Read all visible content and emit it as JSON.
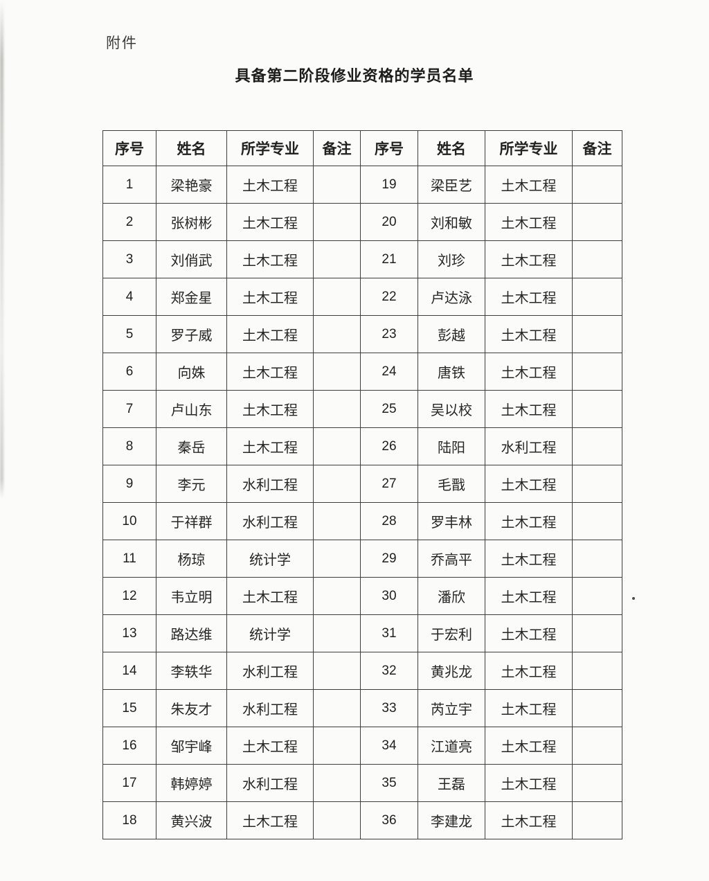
{
  "page": {
    "attachment_label": "附件",
    "title": "具备第二阶段修业资格的学员名单"
  },
  "table": {
    "headers": [
      "序号",
      "姓名",
      "所学专业",
      "备注",
      "序号",
      "姓名",
      "所学专业",
      "备注"
    ],
    "rows": [
      [
        "1",
        "梁艳豪",
        "土木工程",
        "",
        "19",
        "梁臣艺",
        "土木工程",
        ""
      ],
      [
        "2",
        "张树彬",
        "土木工程",
        "",
        "20",
        "刘和敏",
        "土木工程",
        ""
      ],
      [
        "3",
        "刘俏武",
        "土木工程",
        "",
        "21",
        "刘珍",
        "土木工程",
        ""
      ],
      [
        "4",
        "郑金星",
        "土木工程",
        "",
        "22",
        "卢达泳",
        "土木工程",
        ""
      ],
      [
        "5",
        "罗子威",
        "土木工程",
        "",
        "23",
        "彭越",
        "土木工程",
        ""
      ],
      [
        "6",
        "向姝",
        "土木工程",
        "",
        "24",
        "唐铁",
        "土木工程",
        ""
      ],
      [
        "7",
        "卢山东",
        "土木工程",
        "",
        "25",
        "吴以校",
        "土木工程",
        ""
      ],
      [
        "8",
        "秦岳",
        "土木工程",
        "",
        "26",
        "陆阳",
        "水利工程",
        ""
      ],
      [
        "9",
        "李元",
        "水利工程",
        "",
        "27",
        "毛戬",
        "土木工程",
        ""
      ],
      [
        "10",
        "于祥群",
        "水利工程",
        "",
        "28",
        "罗丰林",
        "土木工程",
        ""
      ],
      [
        "11",
        "杨琼",
        "统计学",
        "",
        "29",
        "乔高平",
        "土木工程",
        ""
      ],
      [
        "12",
        "韦立明",
        "土木工程",
        "",
        "30",
        "潘欣",
        "土木工程",
        ""
      ],
      [
        "13",
        "路达维",
        "统计学",
        "",
        "31",
        "于宏利",
        "土木工程",
        ""
      ],
      [
        "14",
        "李轶华",
        "水利工程",
        "",
        "32",
        "黄兆龙",
        "土木工程",
        ""
      ],
      [
        "15",
        "朱友才",
        "水利工程",
        "",
        "33",
        "芮立宇",
        "土木工程",
        ""
      ],
      [
        "16",
        "邹宇峰",
        "土木工程",
        "",
        "34",
        "江道亮",
        "土木工程",
        ""
      ],
      [
        "17",
        "韩婷婷",
        "水利工程",
        "",
        "35",
        "王磊",
        "土木工程",
        ""
      ],
      [
        "18",
        "黄兴波",
        "土木工程",
        "",
        "36",
        "李建龙",
        "土木工程",
        ""
      ]
    ]
  }
}
